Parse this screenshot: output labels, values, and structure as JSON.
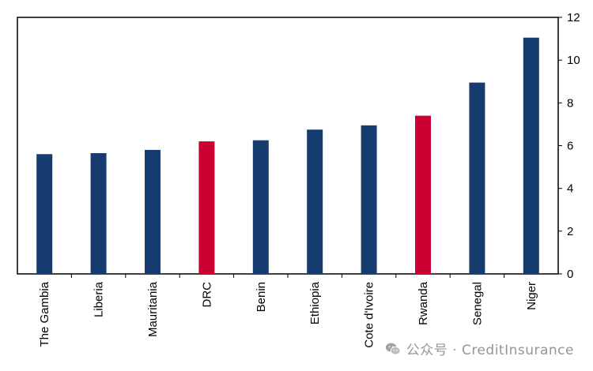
{
  "chart_data": {
    "type": "bar",
    "categories": [
      "The Gambia",
      "Liberia",
      "Mauritania",
      "DRC",
      "Benin",
      "Ethiopia",
      "Cote d'Ivoire",
      "Rwanda",
      "Senegal",
      "Niger"
    ],
    "values": [
      5.6,
      5.65,
      5.8,
      6.2,
      6.25,
      6.75,
      6.95,
      7.4,
      8.95,
      11.05
    ],
    "highlighted": [
      "DRC",
      "Rwanda"
    ],
    "colors": {
      "default": "#163b6e",
      "highlight": "#cc0033"
    },
    "ylim": [
      0,
      12
    ],
    "yticks": [
      0,
      2,
      4,
      6,
      8,
      10,
      12
    ],
    "y_axis_position": "right",
    "grid": false,
    "legend": "none",
    "title": "",
    "xlabel": "",
    "ylabel": ""
  },
  "watermark": {
    "text": "公众号 · CreditInsurance",
    "icon": "wechat-icon"
  }
}
